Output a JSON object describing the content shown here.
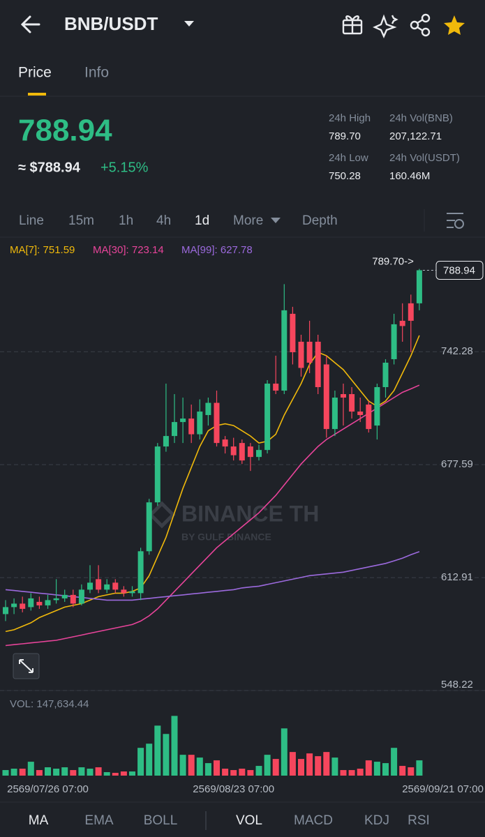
{
  "header": {
    "title": "BNB/USDT"
  },
  "tabs": [
    "Price",
    "Info"
  ],
  "ticker": {
    "price": "788.94",
    "fiat": "≈ $788.94",
    "change": "+5.15%",
    "stats": [
      {
        "label": "24h High",
        "value": "789.70"
      },
      {
        "label": "24h Vol(BNB)",
        "value": "207,122.71"
      },
      {
        "label": "24h Low",
        "value": "750.28"
      },
      {
        "label": "24h Vol(USDT)",
        "value": "160.46M"
      }
    ]
  },
  "intervals": [
    "Line",
    "15m",
    "1h",
    "4h",
    "1d",
    "More",
    "Depth"
  ],
  "watermark": {
    "title": "BINANCE TH",
    "subtitle": "BY GULF BINANCE"
  },
  "chart_data": {
    "type": "candlestick",
    "up_color": "#2ebd85",
    "down_color": "#f6465d",
    "x": [
      null,
      null,
      null,
      null,
      null,
      "2569/07/26 07:00",
      null,
      null,
      null,
      null,
      null,
      null,
      null,
      null,
      null,
      null,
      null,
      null,
      null,
      null,
      null,
      null,
      null,
      null,
      null,
      null,
      null,
      "2569/08/23 07:00",
      null,
      null,
      null,
      null,
      null,
      null,
      null,
      null,
      null,
      null,
      null,
      null,
      null,
      null,
      null,
      null,
      null,
      null,
      null,
      null,
      null,
      "2569/09/21 07:00"
    ],
    "open": [
      592,
      596,
      598,
      596,
      599,
      597,
      600,
      601,
      603,
      598,
      606,
      612,
      606,
      610,
      606,
      604,
      604,
      628,
      656,
      688,
      694,
      702,
      704,
      695,
      706,
      713,
      692,
      688,
      690,
      688,
      682,
      686,
      724,
      720,
      764,
      748,
      748,
      748,
      735,
      698,
      718,
      718,
      708,
      712,
      700,
      722,
      738,
      760,
      770,
      770
    ],
    "high": [
      600,
      601,
      602,
      604,
      602,
      603,
      612,
      606,
      606,
      609,
      620,
      620,
      612,
      612,
      608,
      608,
      630,
      658,
      690,
      724,
      718,
      716,
      712,
      715,
      716,
      720,
      694,
      693,
      692,
      690,
      689,
      726,
      740,
      781,
      768,
      752,
      760,
      752,
      740,
      720,
      724,
      722,
      716,
      714,
      724,
      738,
      764,
      770,
      775,
      789.7
    ],
    "low": [
      588,
      592,
      593,
      594,
      595,
      595,
      598,
      599,
      596,
      597,
      604,
      604,
      604,
      604,
      602,
      602,
      600,
      626,
      654,
      685,
      690,
      690,
      690,
      692,
      700,
      688,
      684,
      680,
      678,
      674,
      680,
      684,
      718,
      718,
      735,
      728,
      730,
      718,
      693,
      694,
      700,
      704,
      702,
      696,
      692,
      716,
      735,
      748,
      742,
      766
    ],
    "close": [
      596,
      598,
      595,
      601,
      597,
      600,
      601,
      603,
      598,
      606,
      610,
      606,
      609,
      606,
      604,
      605,
      628,
      656,
      688,
      694,
      702,
      704,
      695,
      708,
      713,
      690,
      688,
      683,
      680,
      682,
      686,
      724,
      720,
      766,
      742,
      733,
      736,
      722,
      698,
      716,
      716,
      708,
      706,
      698,
      722,
      736,
      758,
      757,
      760,
      788.94
    ],
    "high_label": "789.70->",
    "ylim": [
      548.22,
      807.9
    ],
    "yticks": [
      742.28,
      677.59,
      612.91,
      548.22
    ],
    "grid": true,
    "series": [
      {
        "name": "MA[7]: 751.59",
        "color": "#f0b90b",
        "values": [
          582,
          583,
          585,
          587,
          590,
          592,
          594,
          596,
          597,
          598,
          600,
          602,
          603,
          604,
          604,
          605,
          607,
          614,
          625,
          636,
          650,
          664,
          676,
          688,
          697,
          700,
          701,
          700,
          697,
          694,
          690,
          691,
          695,
          706,
          715,
          724,
          735,
          742,
          740,
          736,
          732,
          726,
          720,
          714,
          711,
          714,
          720,
          730,
          740,
          751.59
        ]
      },
      {
        "name": "MA[30]: 723.14",
        "color": "#e8449a",
        "values": [
          574,
          574.5,
          575,
          575.5,
          576,
          576.5,
          577,
          578,
          579,
          580,
          581,
          582,
          583,
          584,
          585,
          586,
          588,
          591,
          595,
          600,
          605,
          610,
          615,
          620,
          625,
          630,
          634,
          638,
          642,
          646,
          650,
          655,
          660,
          666,
          672,
          678,
          683,
          688,
          692,
          695,
          698,
          701,
          704,
          707,
          710,
          713,
          716,
          719,
          721,
          723.14
        ]
      },
      {
        "name": "MA[99]: 627.78",
        "color": "#9c6ade",
        "values": [
          606,
          605.5,
          605,
          604.5,
          604,
          603.5,
          603,
          602.5,
          602,
          601.5,
          601,
          600.5,
          600,
          600,
          600,
          600,
          600.5,
          601,
          601.5,
          602,
          602.5,
          603,
          603.5,
          604,
          604.5,
          605,
          605.5,
          606,
          607,
          607.5,
          608,
          609,
          610,
          611,
          612,
          613,
          614,
          614.5,
          615,
          615.5,
          616,
          617,
          618,
          619,
          620,
          621,
          622.5,
          624,
          626,
          627.78
        ]
      }
    ],
    "volume": {
      "label": "VOL: 147,634.44",
      "ylim": [
        0,
        620000
      ],
      "values": [
        53680,
        67100,
        67100,
        134200,
        53680,
        80520,
        67100,
        80520,
        53680,
        80520,
        67100,
        80520,
        33550,
        26840,
        40260,
        40260,
        268400,
        308660,
        483120,
        402600,
        577060,
        201300,
        201300,
        174460,
        120780,
        147620,
        67100,
        53680,
        67100,
        53680,
        93940,
        201300,
        161040,
        456280,
        228140,
        161040,
        214720,
        187880,
        228140,
        174460,
        53680,
        53680,
        67100,
        147620,
        134200,
        120780,
        268400,
        93940,
        80520,
        147634.44
      ]
    }
  },
  "indicator_tabs": [
    "MA",
    "EMA",
    "BOLL",
    "VOL",
    "MACD",
    "KDJ",
    "RSI"
  ]
}
